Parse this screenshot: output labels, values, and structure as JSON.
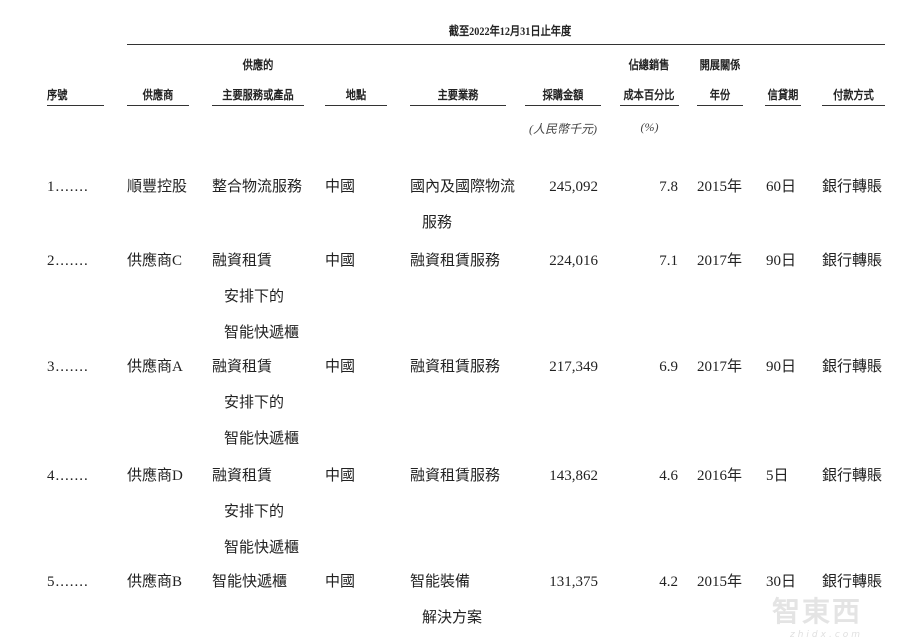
{
  "period_title": "截至2022年12月31日止年度",
  "headers": {
    "seq": "序號",
    "supplier": "供應商",
    "product_l1": "供應的",
    "product_l2": "主要服務或產品",
    "location": "地點",
    "business": "主要業務",
    "amount": "採購金額",
    "pct_l1": "佔總銷售",
    "pct_l2": "成本百分比",
    "year_l1": "開展關係",
    "year_l2": "年份",
    "credit": "信貸期",
    "payment": "付款方式"
  },
  "units": {
    "amount": "(人民幣千元)",
    "pct": "(%)"
  },
  "rows": [
    {
      "seq": "1.......",
      "supplier": "順豐控股",
      "product": [
        "整合物流服務"
      ],
      "location": "中國",
      "business": [
        "國內及國際物流",
        "服務"
      ],
      "amount": "245,092",
      "pct": "7.8",
      "year": "2015年",
      "credit": "60日",
      "payment": "銀行轉賬"
    },
    {
      "seq": "2.......",
      "supplier": "供應商C",
      "product": [
        "融資租賃",
        "安排下的",
        "智能快遞櫃"
      ],
      "location": "中國",
      "business": [
        "融資租賃服務"
      ],
      "amount": "224,016",
      "pct": "7.1",
      "year": "2017年",
      "credit": "90日",
      "payment": "銀行轉賬"
    },
    {
      "seq": "3.......",
      "supplier": "供應商A",
      "product": [
        "融資租賃",
        "安排下的",
        "智能快遞櫃"
      ],
      "location": "中國",
      "business": [
        "融資租賃服務"
      ],
      "amount": "217,349",
      "pct": "6.9",
      "year": "2017年",
      "credit": "90日",
      "payment": "銀行轉賬"
    },
    {
      "seq": "4.......",
      "supplier": "供應商D",
      "product": [
        "融資租賃",
        "安排下的",
        "智能快遞櫃"
      ],
      "location": "中國",
      "business": [
        "融資租賃服務"
      ],
      "amount": "143,862",
      "pct": "4.6",
      "year": "2016年",
      "credit": "5日",
      "payment": "銀行轉賬"
    },
    {
      "seq": "5.......",
      "supplier": "供應商B",
      "product": [
        "智能快遞櫃"
      ],
      "location": "中國",
      "business": [
        "智能裝備",
        "解決方案"
      ],
      "amount": "131,375",
      "pct": "4.2",
      "year": "2015年",
      "credit": "30日",
      "payment": "銀行轉賬"
    }
  ],
  "watermark": {
    "logo": "智東西",
    "url": "zhidx.com"
  }
}
